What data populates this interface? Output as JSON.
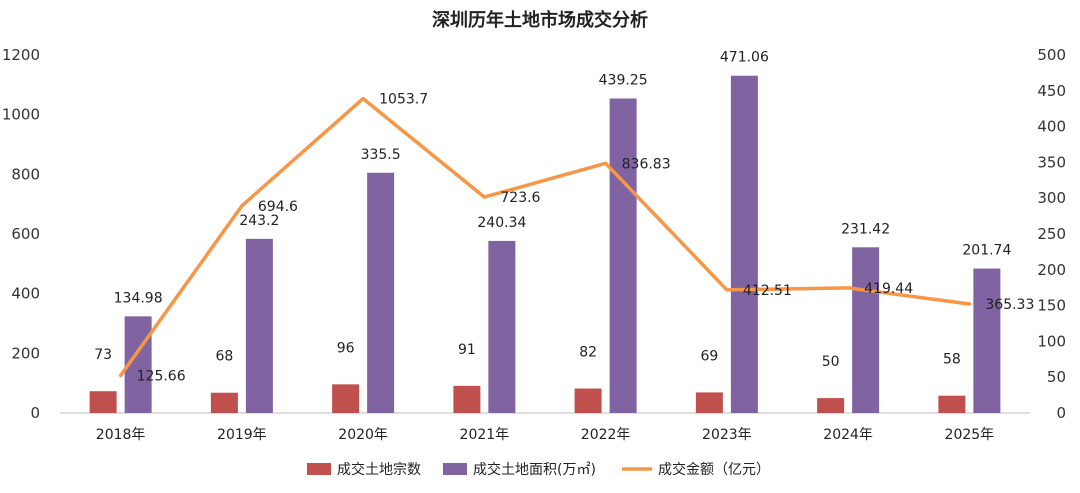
{
  "chart_data": {
    "type": "bar",
    "title": "深圳历年土地市场成交分析",
    "categories": [
      "2018年",
      "2019年",
      "2020年",
      "2021年",
      "2022年",
      "2023年",
      "2024年",
      "2025年"
    ],
    "series": [
      {
        "name": "成交土地宗数",
        "kind": "bar",
        "axis": "left",
        "color": "#c0504d",
        "values": [
          73,
          68,
          96,
          91,
          82,
          69,
          50,
          58
        ],
        "labels": [
          "73",
          "68",
          "96",
          "91",
          "82",
          "69",
          "50",
          "58"
        ]
      },
      {
        "name": "成交土地面积(万㎡)",
        "kind": "bar",
        "axis": "right",
        "color": "#8064a2",
        "values": [
          134.98,
          243.2,
          335.5,
          240.34,
          439.25,
          471.06,
          231.42,
          201.74
        ],
        "labels": [
          "134.98",
          "243.2",
          "335.5",
          "240.34",
          "439.25",
          "471.06",
          "231.42",
          "201.74"
        ]
      },
      {
        "name": "成交金额（亿元）",
        "kind": "line",
        "axis": "left",
        "color": "#f79646",
        "values": [
          125.66,
          694.6,
          1053.7,
          723.6,
          836.83,
          412.51,
          419.44,
          365.33
        ],
        "labels": [
          "125.66",
          "694.6",
          "1053.7",
          "723.6",
          "836.83",
          "412.51",
          "419.44",
          "365.33"
        ]
      }
    ],
    "left_axis": {
      "min": 0,
      "max": 1200,
      "ticks": [
        "0",
        "200",
        "400",
        "600",
        "800",
        "1000",
        "1200"
      ]
    },
    "right_axis": {
      "min": 0,
      "max": 500,
      "ticks": [
        "0",
        "50",
        "100",
        "150",
        "200",
        "250",
        "300",
        "350",
        "400",
        "450",
        "500"
      ]
    },
    "bar_label_scale_note": "",
    "legend_position": "bottom-center",
    "grid": false
  }
}
